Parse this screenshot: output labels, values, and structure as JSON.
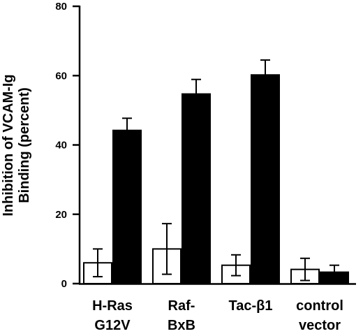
{
  "chart_data": {
    "type": "bar",
    "ylabel_line1": "Inhibition   of   VCAM-Ig",
    "ylabel_line2": "Binding  (percent)",
    "ylim": [
      0,
      80
    ],
    "yticks": [
      "0",
      "20",
      "40",
      "60",
      "80"
    ],
    "grid": false,
    "legend": "none",
    "categories": [
      {
        "line1": "H-Ras",
        "line2": "G12V"
      },
      {
        "line1": "Raf-",
        "line2": "BxB"
      },
      {
        "line1": "Tac-β1",
        "line2": ""
      },
      {
        "line1": "control",
        "line2": "vector"
      }
    ],
    "series": [
      {
        "fill": "#ffffff",
        "values": [
          6,
          10,
          5.3,
          4.1
        ],
        "errors": [
          4,
          7.3,
          3,
          3.2
        ]
      },
      {
        "fill": "#000000",
        "values": [
          44.2,
          54.7,
          60.2,
          3.3
        ],
        "errors": [
          3.5,
          4.2,
          4.3,
          2
        ]
      }
    ]
  }
}
